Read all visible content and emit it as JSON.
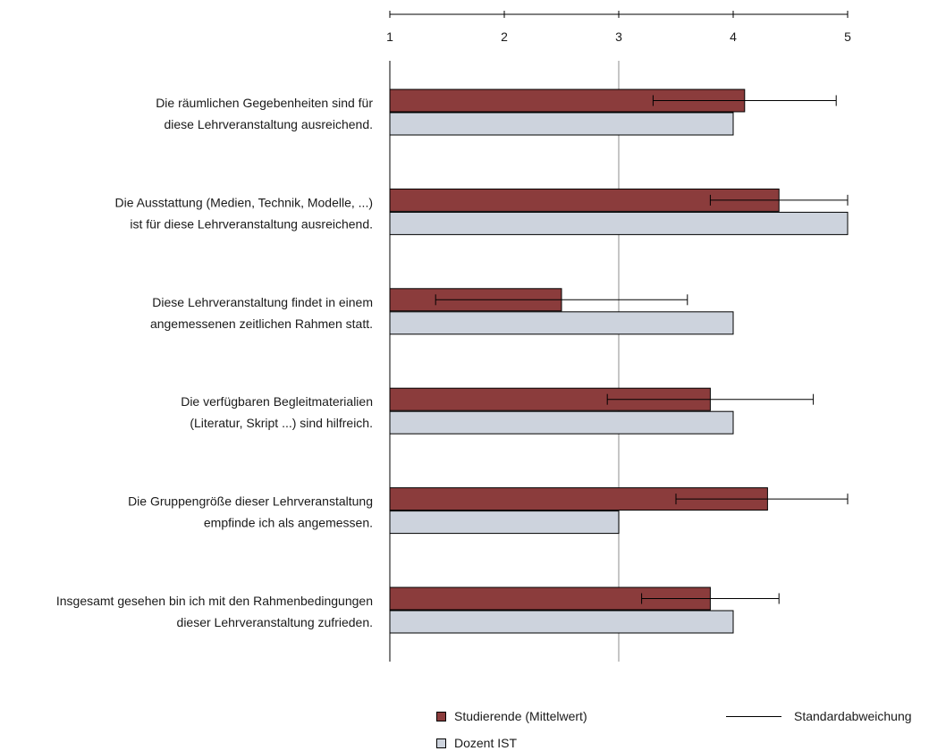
{
  "chart_data": {
    "type": "bar",
    "orientation": "horizontal",
    "xlim": [
      1,
      5
    ],
    "x_ticks": [
      "1",
      "2",
      "3",
      "4",
      "5"
    ],
    "reference_line": 3,
    "categories": [
      [
        "Die räumlichen Gegebenheiten sind für",
        "diese Lehrveranstaltung ausreichend."
      ],
      [
        "Die Ausstattung (Medien, Technik, Modelle, ...)",
        "ist für diese Lehrveranstaltung ausreichend."
      ],
      [
        "Diese Lehrveranstaltung findet in einem",
        "angemessenen zeitlichen Rahmen statt."
      ],
      [
        "Die verfügbaren Begleitmaterialien",
        "(Literatur, Skript ...) sind hilfreich."
      ],
      [
        "Die Gruppengröße dieser Lehrveranstaltung",
        "empfinde ich als angemessen."
      ],
      [
        "Insgesamt gesehen bin ich mit den Rahmenbedingungen",
        "dieser Lehrveranstaltung zufrieden."
      ]
    ],
    "series": [
      {
        "name": "Studierende (Mittelwert)",
        "color": "#8b3c3c",
        "values": [
          4.1,
          4.4,
          2.5,
          3.8,
          4.3,
          3.8
        ],
        "error_low": [
          3.3,
          3.8,
          1.4,
          2.9,
          3.5,
          3.2
        ],
        "error_high": [
          4.9,
          5.0,
          3.6,
          4.7,
          5.0,
          4.4
        ]
      },
      {
        "name": "Dozent IST",
        "color": "#cdd3dd",
        "values": [
          4.0,
          5.0,
          4.0,
          4.0,
          3.0,
          4.0
        ]
      }
    ],
    "legend": {
      "students": "Studierende (Mittelwert)",
      "lecturer": "Dozent IST",
      "std_dev": "Standardabweichung"
    },
    "legend_position": "bottom",
    "grid": false
  }
}
